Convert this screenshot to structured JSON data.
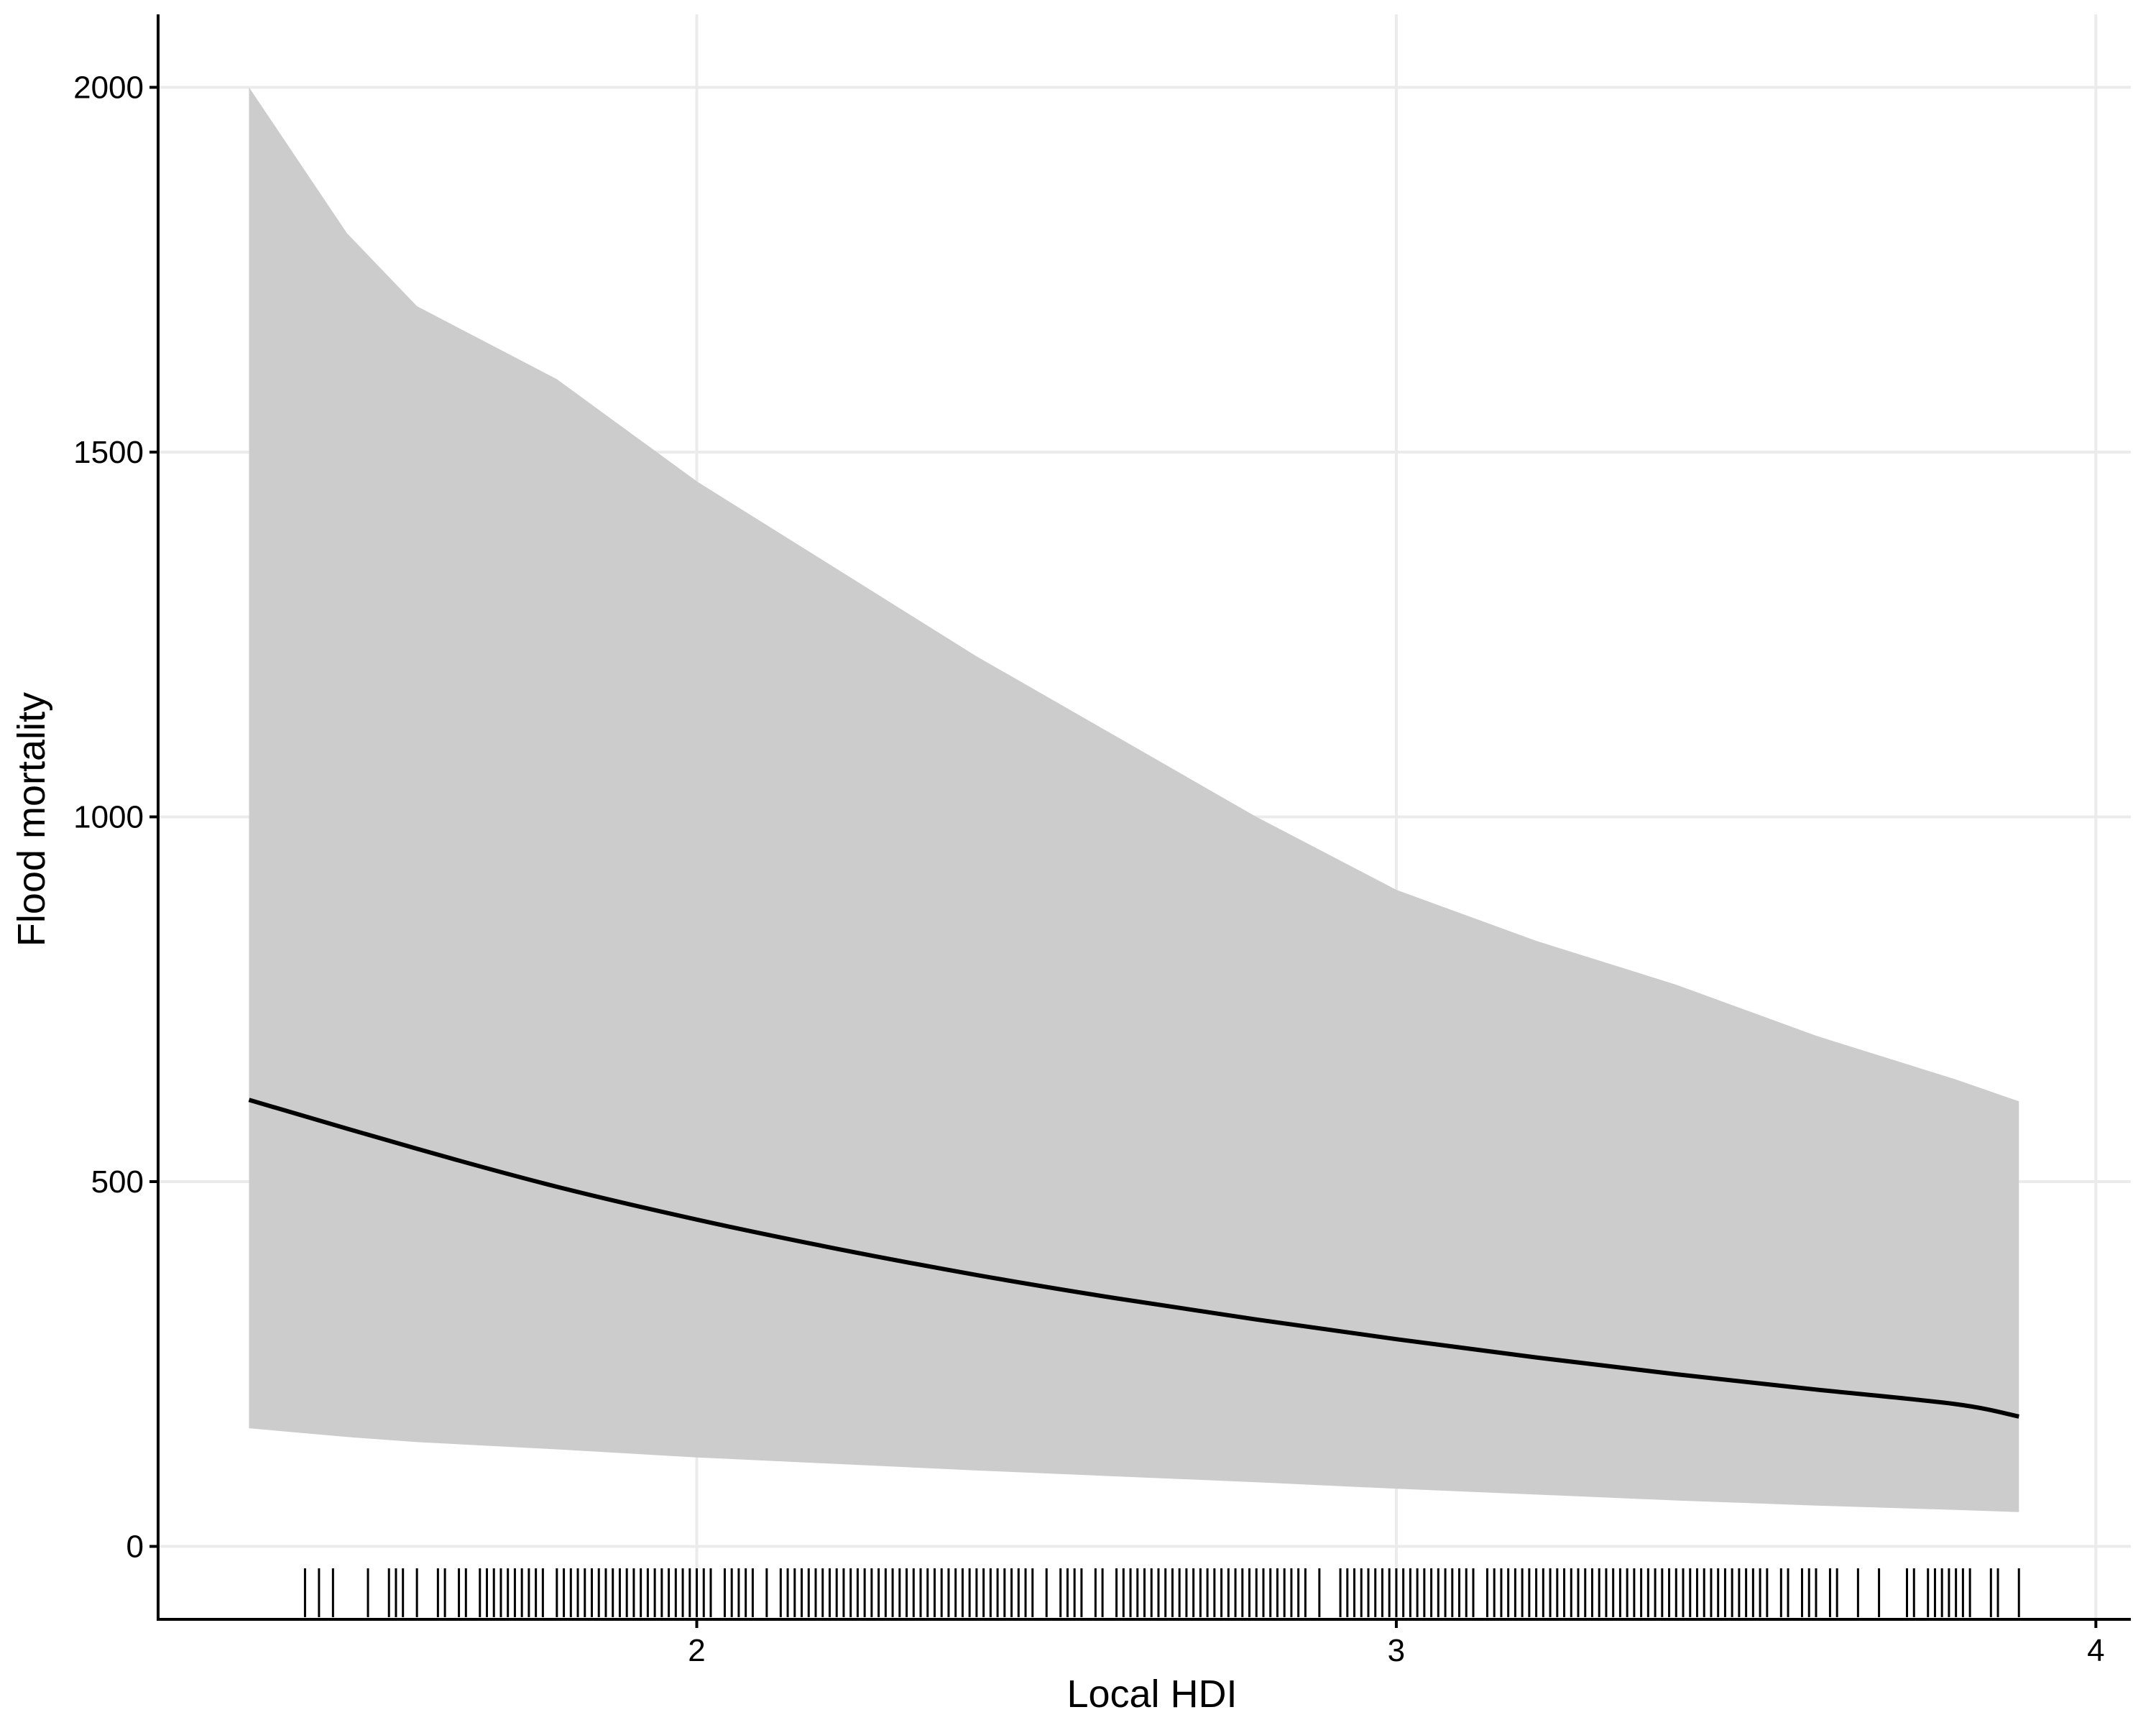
{
  "chart_data": {
    "type": "line",
    "title": "",
    "xlabel": "Local HDI",
    "ylabel": "Flood mortality",
    "xlim": [
      1.23,
      4.05
    ],
    "ylim": [
      -100,
      2100
    ],
    "xticks": [
      "2",
      "3",
      "4"
    ],
    "yticks": [
      "0",
      "500",
      "1000",
      "1500",
      "2000"
    ],
    "grid": true,
    "legend": "none",
    "series": [
      {
        "name": "fitted",
        "kind": "line",
        "color": "#000000",
        "x": [
          1.36,
          1.6,
          1.8,
          2.0,
          2.2,
          2.4,
          2.6,
          2.8,
          3.0,
          3.2,
          3.4,
          3.6,
          3.8,
          3.89
        ],
        "y": [
          612,
          545,
          493,
          448,
          408,
          372,
          340,
          311,
          284,
          259,
          236,
          215,
          195,
          178
        ]
      },
      {
        "name": "confidence band",
        "kind": "band",
        "color": "#cccccc",
        "x": [
          1.36,
          1.5,
          1.6,
          1.8,
          2.0,
          2.2,
          2.4,
          2.6,
          2.8,
          3.0,
          3.2,
          3.4,
          3.6,
          3.8,
          3.89
        ],
        "upper": [
          2000,
          1800,
          1700,
          1600,
          1460,
          1340,
          1220,
          1110,
          1000,
          900,
          830,
          770,
          700,
          640,
          610
        ],
        "lower": [
          162,
          150,
          143,
          133,
          122,
          113,
          104,
          96,
          88,
          79,
          71,
          63,
          56,
          50,
          47
        ]
      }
    ],
    "rug": {
      "color": "#000000",
      "x": [
        1.44,
        1.46,
        1.48,
        1.53,
        1.56,
        1.57,
        1.58,
        1.6,
        1.63,
        1.64,
        1.66,
        1.67,
        1.69,
        1.7,
        1.71,
        1.72,
        1.73,
        1.74,
        1.75,
        1.76,
        1.77,
        1.78,
        1.8,
        1.81,
        1.82,
        1.83,
        1.84,
        1.85,
        1.86,
        1.87,
        1.88,
        1.89,
        1.9,
        1.91,
        1.92,
        1.93,
        1.94,
        1.95,
        1.96,
        1.97,
        1.98,
        1.99,
        2.0,
        2.01,
        2.02,
        2.04,
        2.05,
        2.06,
        2.07,
        2.08,
        2.1,
        2.12,
        2.13,
        2.14,
        2.15,
        2.16,
        2.17,
        2.18,
        2.19,
        2.2,
        2.21,
        2.22,
        2.23,
        2.24,
        2.25,
        2.26,
        2.27,
        2.28,
        2.29,
        2.3,
        2.31,
        2.32,
        2.33,
        2.34,
        2.35,
        2.36,
        2.37,
        2.38,
        2.39,
        2.4,
        2.41,
        2.42,
        2.43,
        2.44,
        2.45,
        2.46,
        2.47,
        2.48,
        2.5,
        2.52,
        2.53,
        2.54,
        2.55,
        2.57,
        2.58,
        2.6,
        2.61,
        2.62,
        2.63,
        2.64,
        2.65,
        2.66,
        2.67,
        2.68,
        2.69,
        2.7,
        2.71,
        2.72,
        2.73,
        2.74,
        2.75,
        2.76,
        2.77,
        2.78,
        2.79,
        2.8,
        2.81,
        2.82,
        2.83,
        2.84,
        2.85,
        2.86,
        2.87,
        2.89,
        2.92,
        2.93,
        2.94,
        2.95,
        2.96,
        2.97,
        2.98,
        2.99,
        3.0,
        3.01,
        3.02,
        3.03,
        3.04,
        3.05,
        3.06,
        3.07,
        3.08,
        3.09,
        3.1,
        3.11,
        3.13,
        3.14,
        3.15,
        3.16,
        3.17,
        3.18,
        3.19,
        3.2,
        3.21,
        3.22,
        3.23,
        3.24,
        3.25,
        3.26,
        3.27,
        3.28,
        3.29,
        3.3,
        3.31,
        3.32,
        3.33,
        3.34,
        3.35,
        3.36,
        3.37,
        3.38,
        3.39,
        3.4,
        3.41,
        3.42,
        3.43,
        3.44,
        3.45,
        3.46,
        3.47,
        3.48,
        3.49,
        3.5,
        3.51,
        3.52,
        3.53,
        3.55,
        3.56,
        3.58,
        3.59,
        3.6,
        3.62,
        3.63,
        3.66,
        3.69,
        3.73,
        3.74,
        3.76,
        3.77,
        3.78,
        3.79,
        3.8,
        3.81,
        3.82,
        3.85,
        3.86,
        3.89
      ]
    }
  }
}
